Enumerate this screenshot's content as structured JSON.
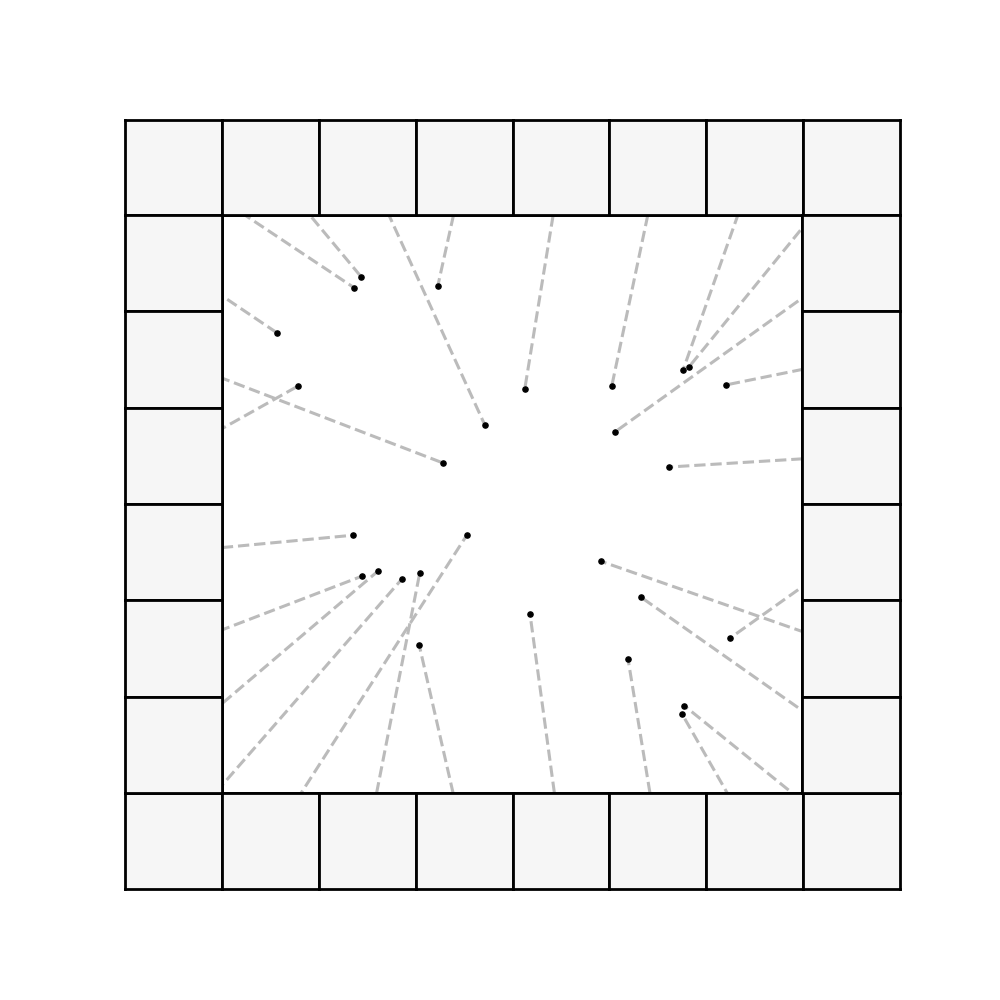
{
  "chart_data": {
    "type": "scatter",
    "x": [
      24.0,
      22.8,
      37.2,
      9.5,
      13.1,
      52.2,
      67.2,
      45.3,
      67.8,
      79.5,
      80.5,
      86.9,
      38.1,
      77.1,
      22.6,
      42.2,
      65.3,
      24.1,
      26.9,
      31.0,
      34.1,
      72.2,
      53.1,
      87.6,
      34.0,
      70.0,
      79.7,
      79.3
    ],
    "y": [
      89.3,
      87.4,
      87.7,
      79.6,
      70.4,
      69.9,
      70.4,
      63.7,
      62.5,
      73.2,
      73.7,
      70.6,
      57.1,
      56.4,
      44.6,
      44.6,
      40.1,
      37.5,
      38.4,
      37.0,
      38.1,
      33.9,
      31.0,
      26.8,
      25.6,
      23.2,
      15.1,
      13.7
    ],
    "xlim": [
      0,
      100
    ],
    "ylim": [
      0,
      100
    ],
    "tick_labels": false,
    "color": "#000000"
  }
}
